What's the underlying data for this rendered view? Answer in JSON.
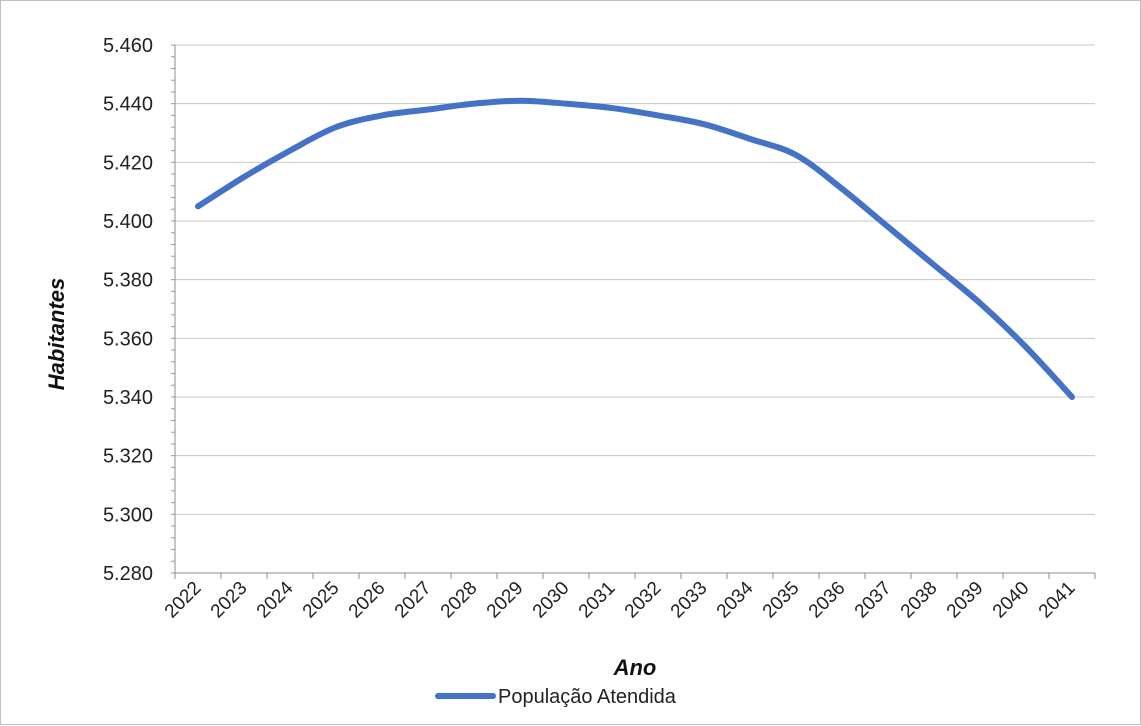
{
  "chart_data": {
    "type": "line",
    "xlabel": "Ano",
    "ylabel": "Habitantes",
    "categories": [
      "2022",
      "2023",
      "2024",
      "2025",
      "2026",
      "2027",
      "2028",
      "2029",
      "2030",
      "2031",
      "2032",
      "2033",
      "2034",
      "2035",
      "2036",
      "2037",
      "2038",
      "2039",
      "2040",
      "2041"
    ],
    "series": [
      {
        "name": "População Atendida",
        "color": "#4472c4",
        "values": [
          5.405,
          5.415,
          5.424,
          5.432,
          5.436,
          5.438,
          5.44,
          5.441,
          5.44,
          5.4385,
          5.436,
          5.433,
          5.428,
          5.4225,
          5.411,
          5.398,
          5.385,
          5.372,
          5.357,
          5.34
        ]
      }
    ],
    "ylim": [
      5.28,
      5.46
    ],
    "yticks": [
      "5.280",
      "5.300",
      "5.320",
      "5.340",
      "5.360",
      "5.380",
      "5.400",
      "5.420",
      "5.440",
      "5.460"
    ],
    "grid": true,
    "legend_position": "bottom"
  }
}
